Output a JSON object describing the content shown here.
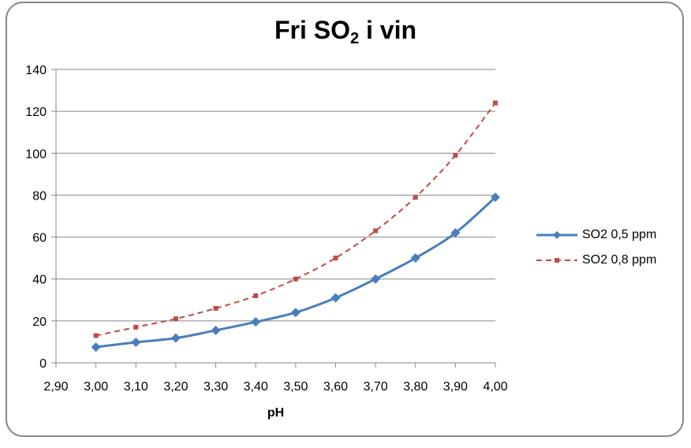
{
  "chart_data": {
    "type": "line",
    "title": "Fri SO2 i vin",
    "title_parts": {
      "pre": "Fri SO",
      "sub": "2",
      "post": " i vin"
    },
    "xlabel": "pH",
    "ylabel": "",
    "xlim": [
      2.9,
      4.0
    ],
    "ylim": [
      0,
      140
    ],
    "x_ticks": [
      "2,90",
      "3,00",
      "3,10",
      "3,20",
      "3,30",
      "3,40",
      "3,50",
      "3,60",
      "3,70",
      "3,80",
      "3,90",
      "4,00"
    ],
    "y_ticks": [
      "0",
      "20",
      "40",
      "60",
      "80",
      "100",
      "120",
      "140"
    ],
    "grid": {
      "horizontal": true,
      "vertical": false
    },
    "legend_position": "right",
    "x": [
      3.0,
      3.1,
      3.2,
      3.3,
      3.4,
      3.5,
      3.6,
      3.7,
      3.8,
      3.9,
      4.0
    ],
    "series": [
      {
        "name": "SO2 0,5 ppm",
        "color": "#4a7ebb",
        "style": "solid",
        "marker": "diamond",
        "values": [
          7.5,
          9.8,
          11.8,
          15.5,
          19.5,
          24,
          31,
          40,
          50,
          62,
          79
        ]
      },
      {
        "name": "SO2 0,8 ppm",
        "color": "#be4b48",
        "style": "dashed",
        "marker": "square",
        "values": [
          13,
          17,
          21,
          26,
          32,
          40,
          50,
          63,
          79,
          99,
          124
        ]
      }
    ]
  }
}
